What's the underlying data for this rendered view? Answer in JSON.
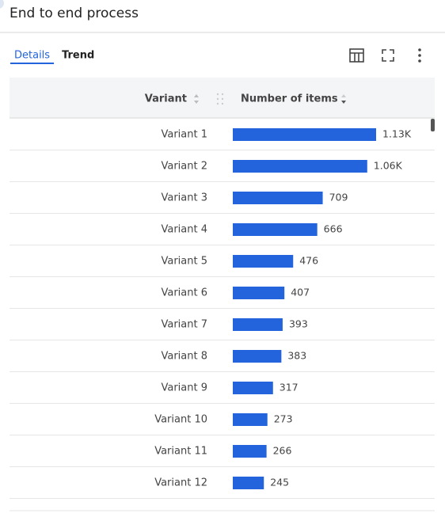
{
  "header": {
    "title": "End to end process"
  },
  "tabs": {
    "items": [
      "Details",
      "Trend"
    ],
    "active": 0
  },
  "table": {
    "columns": [
      "Variant",
      "Number of items"
    ],
    "bar_color": "#2364dc",
    "rows": [
      {
        "variant": "Variant 1",
        "items": 1130,
        "items_label": "1.13K"
      },
      {
        "variant": "Variant 2",
        "items": 1060,
        "items_label": "1.06K"
      },
      {
        "variant": "Variant 3",
        "items": 709
      },
      {
        "variant": "Variant 4",
        "items": 666
      },
      {
        "variant": "Variant 5",
        "items": 476
      },
      {
        "variant": "Variant 6",
        "items": 407
      },
      {
        "variant": "Variant 7",
        "items": 393
      },
      {
        "variant": "Variant 8",
        "items": 383
      },
      {
        "variant": "Variant 9",
        "items": 317
      },
      {
        "variant": "Variant 10",
        "items": 273
      },
      {
        "variant": "Variant 11",
        "items": 266
      },
      {
        "variant": "Variant 12",
        "items": 245
      }
    ]
  }
}
